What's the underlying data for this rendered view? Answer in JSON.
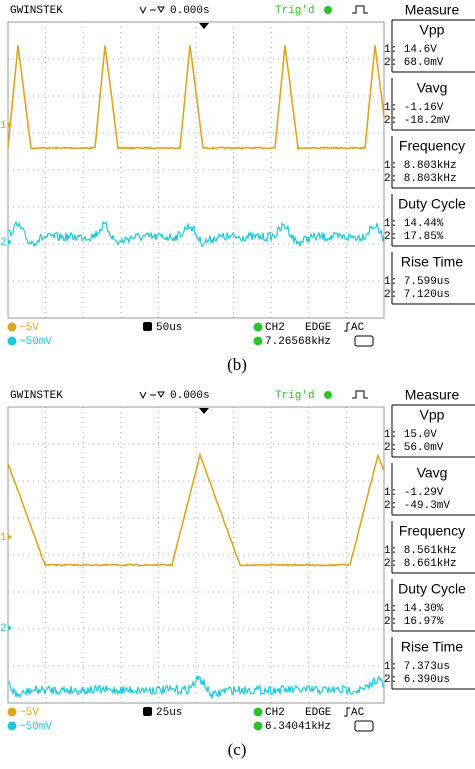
{
  "panels": [
    {
      "caption": "(b)",
      "brand": "GWINSTEK",
      "time_offset": "0.000s",
      "trigger_status": "Trig'd",
      "measure_title": "Measure",
      "measurements": [
        {
          "name": "Vpp",
          "ch1": "1: 14.6V",
          "ch2": "2: 68.0mV"
        },
        {
          "name": "Vavg",
          "ch1": "1: -1.16V",
          "ch2": "2: -18.2mV"
        },
        {
          "name": "Frequency",
          "ch1": "1: 8.803kHz",
          "ch2": "2: 8.803kHz"
        },
        {
          "name": "Duty Cycle",
          "ch1": "1: 14.44%",
          "ch2": "2: 17.85%"
        },
        {
          "name": "Rise Time",
          "ch1": "1: 7.599us",
          "ch2": "2: 7.120us"
        }
      ],
      "ch1_marker": "1",
      "ch2_marker": "2",
      "ch1_scale": "~5V",
      "ch2_scale": "~50mV",
      "timebase": "50us",
      "trigger_source": "CH2",
      "trigger_type": "EDGE",
      "coupling": "AC",
      "trigger_frequency": "7.26568kHz"
    },
    {
      "caption": "(c)",
      "brand": "GWINSTEK",
      "time_offset": "0.000s",
      "trigger_status": "Trig'd",
      "measure_title": "Measure",
      "measurements": [
        {
          "name": "Vpp",
          "ch1": "1: 15.0V",
          "ch2": "2: 56.0mV"
        },
        {
          "name": "Vavg",
          "ch1": "1: -1.29V",
          "ch2": "2: -49.3mV"
        },
        {
          "name": "Frequency",
          "ch1": "1: 8.561kHz",
          "ch2": "2: 8.661kHz"
        },
        {
          "name": "Duty Cycle",
          "ch1": "1: 14.30%",
          "ch2": "2: 16.97%"
        },
        {
          "name": "Rise Time",
          "ch1": "1: 7.373us",
          "ch2": "2: 6.390us"
        }
      ],
      "ch1_marker": "1",
      "ch2_marker": "2",
      "ch1_scale": "~5V",
      "ch2_scale": "~50mV",
      "timebase": "25us",
      "trigger_source": "CH2",
      "trigger_type": "EDGE",
      "coupling": "AC",
      "trigger_frequency": "6.34041kHz"
    }
  ]
}
